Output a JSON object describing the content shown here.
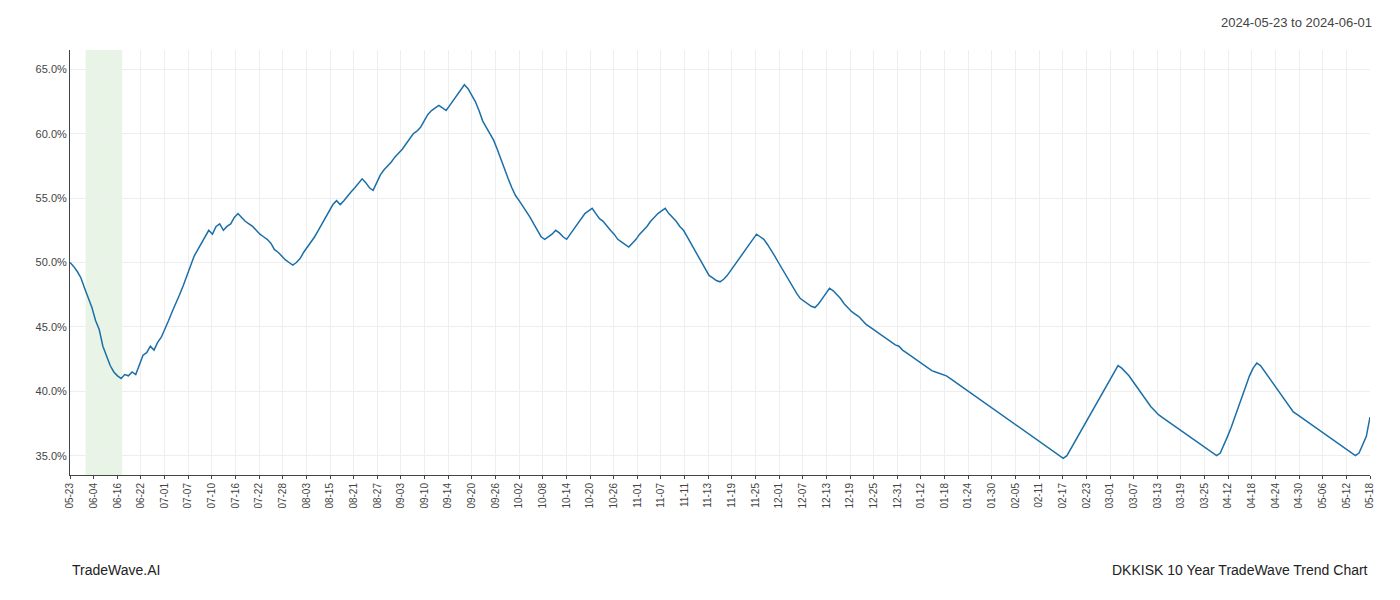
{
  "chart_data": {
    "type": "line",
    "title": "2024-05-23 to 2024-06-01",
    "annotations": [
      {
        "text": "TradeWave.AI"
      },
      {
        "text": "DKKISK 10 Year TradeWave Trend Chart"
      }
    ],
    "color": "#1a6fa8",
    "grid": true,
    "shade": {
      "start_frac": 0.012,
      "end_frac": 0.04,
      "color": "#d6ecd2"
    },
    "ylim": [
      0.335,
      0.665
    ],
    "yticks": [
      {
        "value": 0.35,
        "label": "35.0%"
      },
      {
        "value": 0.4,
        "label": "40.0%"
      },
      {
        "value": 0.45,
        "label": "45.0%"
      },
      {
        "value": 0.5,
        "label": "50.0%"
      },
      {
        "value": 0.55,
        "label": "55.0%"
      },
      {
        "value": 0.6,
        "label": "60.0%"
      },
      {
        "value": 0.65,
        "label": "65.0%"
      }
    ],
    "x_labels": [
      "05-23",
      "06-04",
      "06-16",
      "06-22",
      "07-01",
      "07-07",
      "07-10",
      "07-16",
      "07-22",
      "07-28",
      "08-03",
      "08-15",
      "08-21",
      "08-27",
      "09-03",
      "09-10",
      "09-14",
      "09-20",
      "09-26",
      "10-02",
      "10-08",
      "10-14",
      "10-20",
      "10-26",
      "11-01",
      "11-07",
      "11-11",
      "11-13",
      "11-19",
      "11-25",
      "12-01",
      "12-07",
      "12-13",
      "12-19",
      "12-25",
      "12-31",
      "01-12",
      "01-18",
      "01-24",
      "01-30",
      "02-05",
      "02-11",
      "02-17",
      "02-23",
      "03-01",
      "03-07",
      "03-13",
      "03-19",
      "03-25",
      "04-12",
      "04-18",
      "04-24",
      "04-30",
      "05-06",
      "05-12",
      "05-18"
    ],
    "values": [
      0.5,
      0.497,
      0.493,
      0.488,
      0.48,
      0.472,
      0.465,
      0.455,
      0.448,
      0.435,
      0.428,
      0.42,
      0.415,
      0.412,
      0.41,
      0.413,
      0.412,
      0.415,
      0.413,
      0.42,
      0.428,
      0.43,
      0.435,
      0.432,
      0.438,
      0.442,
      0.448,
      0.455,
      0.462,
      0.468,
      0.475,
      0.482,
      0.49,
      0.498,
      0.505,
      0.51,
      0.515,
      0.52,
      0.525,
      0.522,
      0.528,
      0.53,
      0.525,
      0.528,
      0.53,
      0.535,
      0.538,
      0.535,
      0.532,
      0.53,
      0.528,
      0.525,
      0.522,
      0.52,
      0.518,
      0.515,
      0.51,
      0.508,
      0.505,
      0.502,
      0.5,
      0.498,
      0.5,
      0.503,
      0.508,
      0.512,
      0.515,
      0.52,
      0.525,
      0.53,
      0.535,
      0.54,
      0.545,
      0.548,
      0.545,
      0.548,
      0.552,
      0.555,
      0.558,
      0.562,
      0.565,
      0.562,
      0.558,
      0.556,
      0.562,
      0.568,
      0.572,
      0.575,
      0.578,
      0.582,
      0.585,
      0.588,
      0.592,
      0.596,
      0.6,
      0.602,
      0.605,
      0.61,
      0.615,
      0.618,
      0.62,
      0.622,
      0.62,
      0.618,
      0.622,
      0.626,
      0.63,
      0.635,
      0.638,
      0.635,
      0.63,
      0.625,
      0.618,
      0.61,
      0.605,
      0.6,
      0.595,
      0.588,
      0.58,
      0.572,
      0.565,
      0.558,
      0.552,
      0.548,
      0.544,
      0.54,
      0.535,
      0.53,
      0.525,
      0.52,
      0.518,
      0.52,
      0.522,
      0.525,
      0.523,
      0.52,
      0.518,
      0.522,
      0.526,
      0.53,
      0.535,
      0.538,
      0.54,
      0.542,
      0.538,
      0.534,
      0.532,
      0.528,
      0.525,
      0.522,
      0.518,
      0.516,
      0.514,
      0.512,
      0.515,
      0.518,
      0.522,
      0.525,
      0.528,
      0.532,
      0.535,
      0.538,
      0.54,
      0.542,
      0.538,
      0.535,
      0.532,
      0.528,
      0.525,
      0.52,
      0.515,
      0.51,
      0.505,
      0.5,
      0.495,
      0.49,
      0.488,
      0.486,
      0.485,
      0.487,
      0.49,
      0.494,
      0.498,
      0.502,
      0.506,
      0.51,
      0.514,
      0.518,
      0.522,
      0.52,
      0.518,
      0.514,
      0.51,
      0.505,
      0.5,
      0.495,
      0.49,
      0.485,
      0.48,
      0.476,
      0.472,
      0.47,
      0.468,
      0.466,
      0.465,
      0.468,
      0.472,
      0.476,
      0.48,
      0.478,
      0.475,
      0.472,
      0.468,
      0.465,
      0.462,
      0.46,
      0.458,
      0.455,
      0.452,
      0.45,
      0.448,
      0.446,
      0.444,
      0.442,
      0.44,
      0.438,
      0.436,
      0.435,
      0.432,
      0.43,
      0.428,
      0.426,
      0.424,
      0.422,
      0.42,
      0.418,
      0.416,
      0.415,
      0.414,
      0.413,
      0.412,
      0.41,
      0.408,
      0.406,
      0.404,
      0.402,
      0.4,
      0.398,
      0.396,
      0.394,
      0.392,
      0.39,
      0.388,
      0.386,
      0.384,
      0.382,
      0.38,
      0.378,
      0.376,
      0.374,
      0.372,
      0.37,
      0.368,
      0.366,
      0.364,
      0.362,
      0.36,
      0.358,
      0.356,
      0.354,
      0.352,
      0.35,
      0.348,
      0.35,
      0.355,
      0.36,
      0.365,
      0.37,
      0.375,
      0.38,
      0.385,
      0.39,
      0.395,
      0.4,
      0.405,
      0.41,
      0.415,
      0.42,
      0.418,
      0.415,
      0.412,
      0.408,
      0.404,
      0.4,
      0.396,
      0.392,
      0.388,
      0.385,
      0.382,
      0.38,
      0.378,
      0.376,
      0.374,
      0.372,
      0.37,
      0.368,
      0.366,
      0.364,
      0.362,
      0.36,
      0.358,
      0.356,
      0.354,
      0.352,
      0.35,
      0.352,
      0.358,
      0.365,
      0.372,
      0.38,
      0.388,
      0.396,
      0.404,
      0.412,
      0.418,
      0.422,
      0.42,
      0.416,
      0.412,
      0.408,
      0.404,
      0.4,
      0.396,
      0.392,
      0.388,
      0.384,
      0.382,
      0.38,
      0.378,
      0.376,
      0.374,
      0.372,
      0.37,
      0.368,
      0.366,
      0.364,
      0.362,
      0.36,
      0.358,
      0.356,
      0.354,
      0.352,
      0.35,
      0.352,
      0.358,
      0.365,
      0.38
    ]
  }
}
